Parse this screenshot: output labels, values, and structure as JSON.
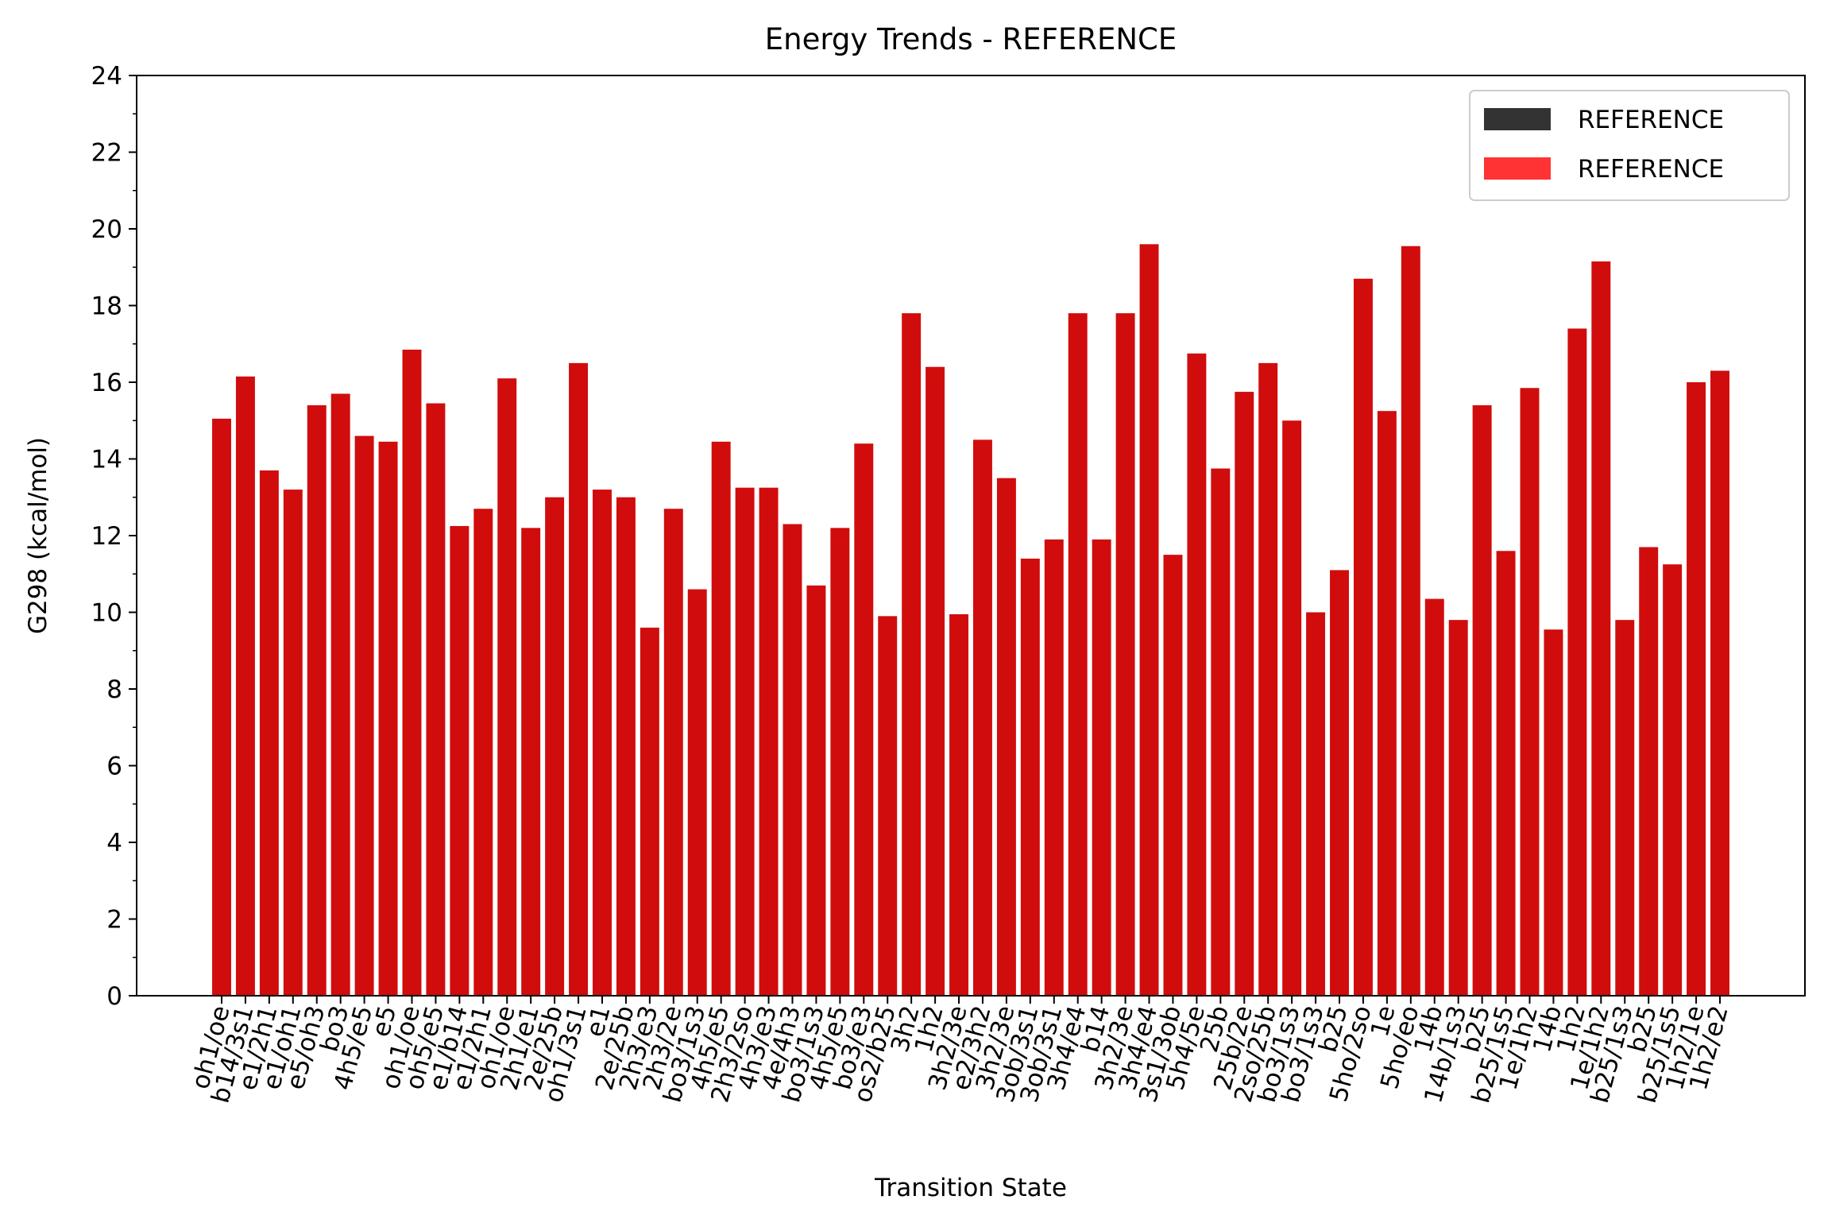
{
  "chart_data": {
    "type": "bar",
    "title": "Energy Trends - REFERENCE",
    "xlabel": "Transition State",
    "ylabel": "G298 (kcal/mol)",
    "ylim": [
      0,
      24
    ],
    "yticks": [
      0,
      2,
      4,
      6,
      8,
      10,
      12,
      14,
      16,
      18,
      20,
      22,
      24
    ],
    "grid": false,
    "legend_position": "top-right",
    "legend": [
      {
        "label": "REFERENCE",
        "color": "#333333"
      },
      {
        "label": "REFERENCE",
        "color": "#ff3333"
      }
    ],
    "bar_color": "#d10c0c",
    "categories": [
      "oh1/oe",
      "b14/3s1",
      "e1/2h1",
      "e1/oh1",
      "e5/oh3",
      "bo3",
      "4h5/e5",
      "e5",
      "oh1/oe",
      "oh5/e5",
      "e1/b14",
      "e1/2h1",
      "oh1/oe",
      "2h1/e1",
      "2e/25b",
      "oh1/3s1",
      "e1",
      "2e/25b",
      "2h3/e3",
      "2h3/2e",
      "bo3/1s3",
      "4h5/e5",
      "2h3/2so",
      "4h3/e3",
      "4e/4h3",
      "bo3/1s3",
      "4h5/e5",
      "bo3/e3",
      "os2/b25",
      "3h2",
      "1h2",
      "3h2/3e",
      "e2/3h2",
      "3h2/3e",
      "3ob/3s1",
      "3ob/3s1",
      "3h4/e4",
      "b14",
      "3h2/3e",
      "3h4/e4",
      "3s1/3ob",
      "5h4/5e",
      "25b",
      "25b/2e",
      "2so/25b",
      "bo3/1s3",
      "bo3/1s3",
      "b25",
      "5ho/2so",
      "1e",
      "5ho/eo",
      "14b",
      "14b/1s3",
      "b25",
      "b25/1s5",
      "1e/1h2",
      "14b",
      "1h2",
      "1e/1h2",
      "b25/1s3",
      "b25",
      "b25/1s5",
      "1h2/1e",
      "1h2/e2"
    ],
    "values": [
      15.05,
      16.15,
      13.7,
      13.2,
      15.4,
      15.7,
      14.6,
      14.45,
      16.85,
      15.45,
      12.25,
      12.7,
      16.1,
      12.2,
      13.0,
      16.5,
      13.2,
      13.0,
      9.6,
      12.7,
      10.6,
      14.45,
      13.25,
      13.25,
      12.3,
      10.7,
      12.2,
      14.4,
      9.9,
      17.8,
      16.4,
      9.95,
      14.5,
      13.5,
      11.4,
      11.9,
      17.8,
      11.9,
      17.8,
      19.6,
      11.5,
      16.75,
      13.75,
      15.75,
      16.5,
      15.0,
      10.0,
      11.1,
      18.7,
      15.25,
      19.55,
      10.35,
      9.8,
      15.4,
      11.6,
      15.85,
      9.55,
      17.4,
      19.15,
      9.8,
      11.7,
      11.25,
      16.0,
      16.3
    ]
  }
}
